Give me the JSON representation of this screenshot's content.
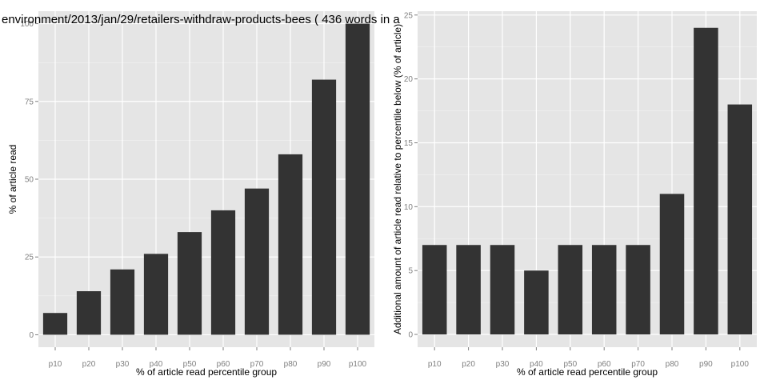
{
  "chart_data": [
    {
      "type": "bar",
      "title": "environment/2013/jan/29/retailers-withdraw-products-bees ( 436 words in a",
      "xlabel": "% of article read percentile group",
      "ylabel": "% of article read",
      "categories": [
        "p10",
        "p20",
        "p30",
        "p40",
        "p50",
        "p60",
        "p70",
        "p80",
        "p90",
        "p100"
      ],
      "values": [
        7,
        14,
        21,
        26,
        33,
        40,
        47,
        58,
        82,
        100
      ],
      "ylim": [
        -4,
        104
      ],
      "yticks": [
        0,
        25,
        50,
        75,
        100
      ],
      "ytick_labels": [
        "0",
        "25",
        "50",
        "75",
        "100"
      ],
      "grid": true,
      "colors": {
        "panel": "#e5e5e5",
        "grid": "#ffffff",
        "grid_minor": "#f2f2f2",
        "bar": "#333333"
      }
    },
    {
      "type": "bar",
      "title": "",
      "xlabel": "% of article read percentile group",
      "ylabel": "Additional amount of article read relative to percentile below (% of article)",
      "categories": [
        "p10",
        "p20",
        "p30",
        "p40",
        "p50",
        "p60",
        "p70",
        "p80",
        "p90",
        "p100"
      ],
      "values": [
        7,
        7,
        7,
        5,
        7,
        7,
        7,
        11,
        24,
        18
      ],
      "ylim": [
        -1,
        25.3
      ],
      "yticks": [
        0,
        5,
        10,
        15,
        20,
        25
      ],
      "ytick_labels": [
        "0",
        "5",
        "10",
        "15",
        "20",
        "25"
      ],
      "grid": true,
      "colors": {
        "panel": "#e5e5e5",
        "grid": "#ffffff",
        "grid_minor": "#f2f2f2",
        "bar": "#333333"
      }
    }
  ]
}
